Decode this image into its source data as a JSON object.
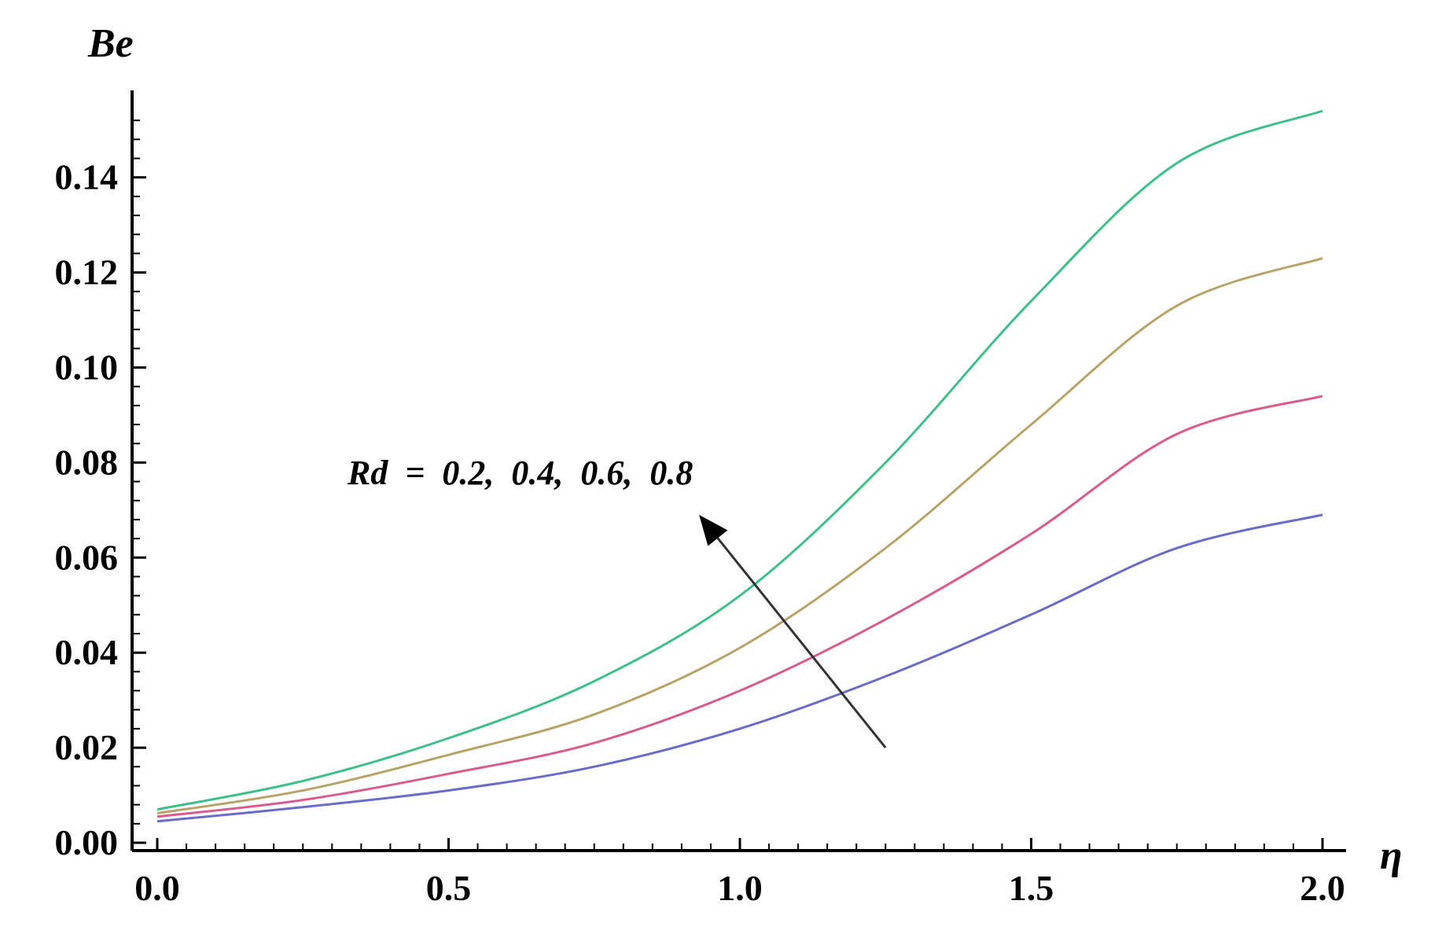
{
  "chart_data": {
    "type": "line",
    "title": "",
    "xlabel": "η",
    "ylabel": "Be",
    "xlim": [
      0.0,
      2.0
    ],
    "ylim": [
      0.0,
      0.155
    ],
    "x_ticks": [
      "0.0",
      "0.5",
      "1.0",
      "1.5",
      "2.0"
    ],
    "y_ticks": [
      "0.00",
      "0.02",
      "0.04",
      "0.06",
      "0.08",
      "0.10",
      "0.12",
      "0.14"
    ],
    "x_tick_values": [
      0.0,
      0.5,
      1.0,
      1.5,
      2.0
    ],
    "y_tick_values": [
      0.0,
      0.02,
      0.04,
      0.06,
      0.08,
      0.1,
      0.12,
      0.14
    ],
    "grid": false,
    "legend": "none",
    "annotation": {
      "text": "Rd  =  0.2,  0.4,  0.6,  0.8",
      "arrow_from": [
        1.25,
        0.02
      ],
      "arrow_to": [
        0.93,
        0.069
      ]
    },
    "x": [
      0.0,
      0.25,
      0.5,
      0.75,
      1.0,
      1.25,
      1.5,
      1.75,
      2.0
    ],
    "series": [
      {
        "color": "#6b6bc8",
        "values": [
          0.0045,
          0.0075,
          0.011,
          0.016,
          0.024,
          0.035,
          0.048,
          0.062,
          0.069
        ]
      },
      {
        "color": "#d95c8f",
        "values": [
          0.0055,
          0.009,
          0.0145,
          0.021,
          0.032,
          0.047,
          0.065,
          0.086,
          0.094
        ]
      },
      {
        "color": "#b8a468",
        "values": [
          0.0062,
          0.011,
          0.0185,
          0.027,
          0.041,
          0.062,
          0.088,
          0.113,
          0.123
        ]
      },
      {
        "color": "#3fbf8a",
        "values": [
          0.007,
          0.013,
          0.022,
          0.034,
          0.052,
          0.08,
          0.114,
          0.143,
          0.154
        ]
      }
    ]
  }
}
